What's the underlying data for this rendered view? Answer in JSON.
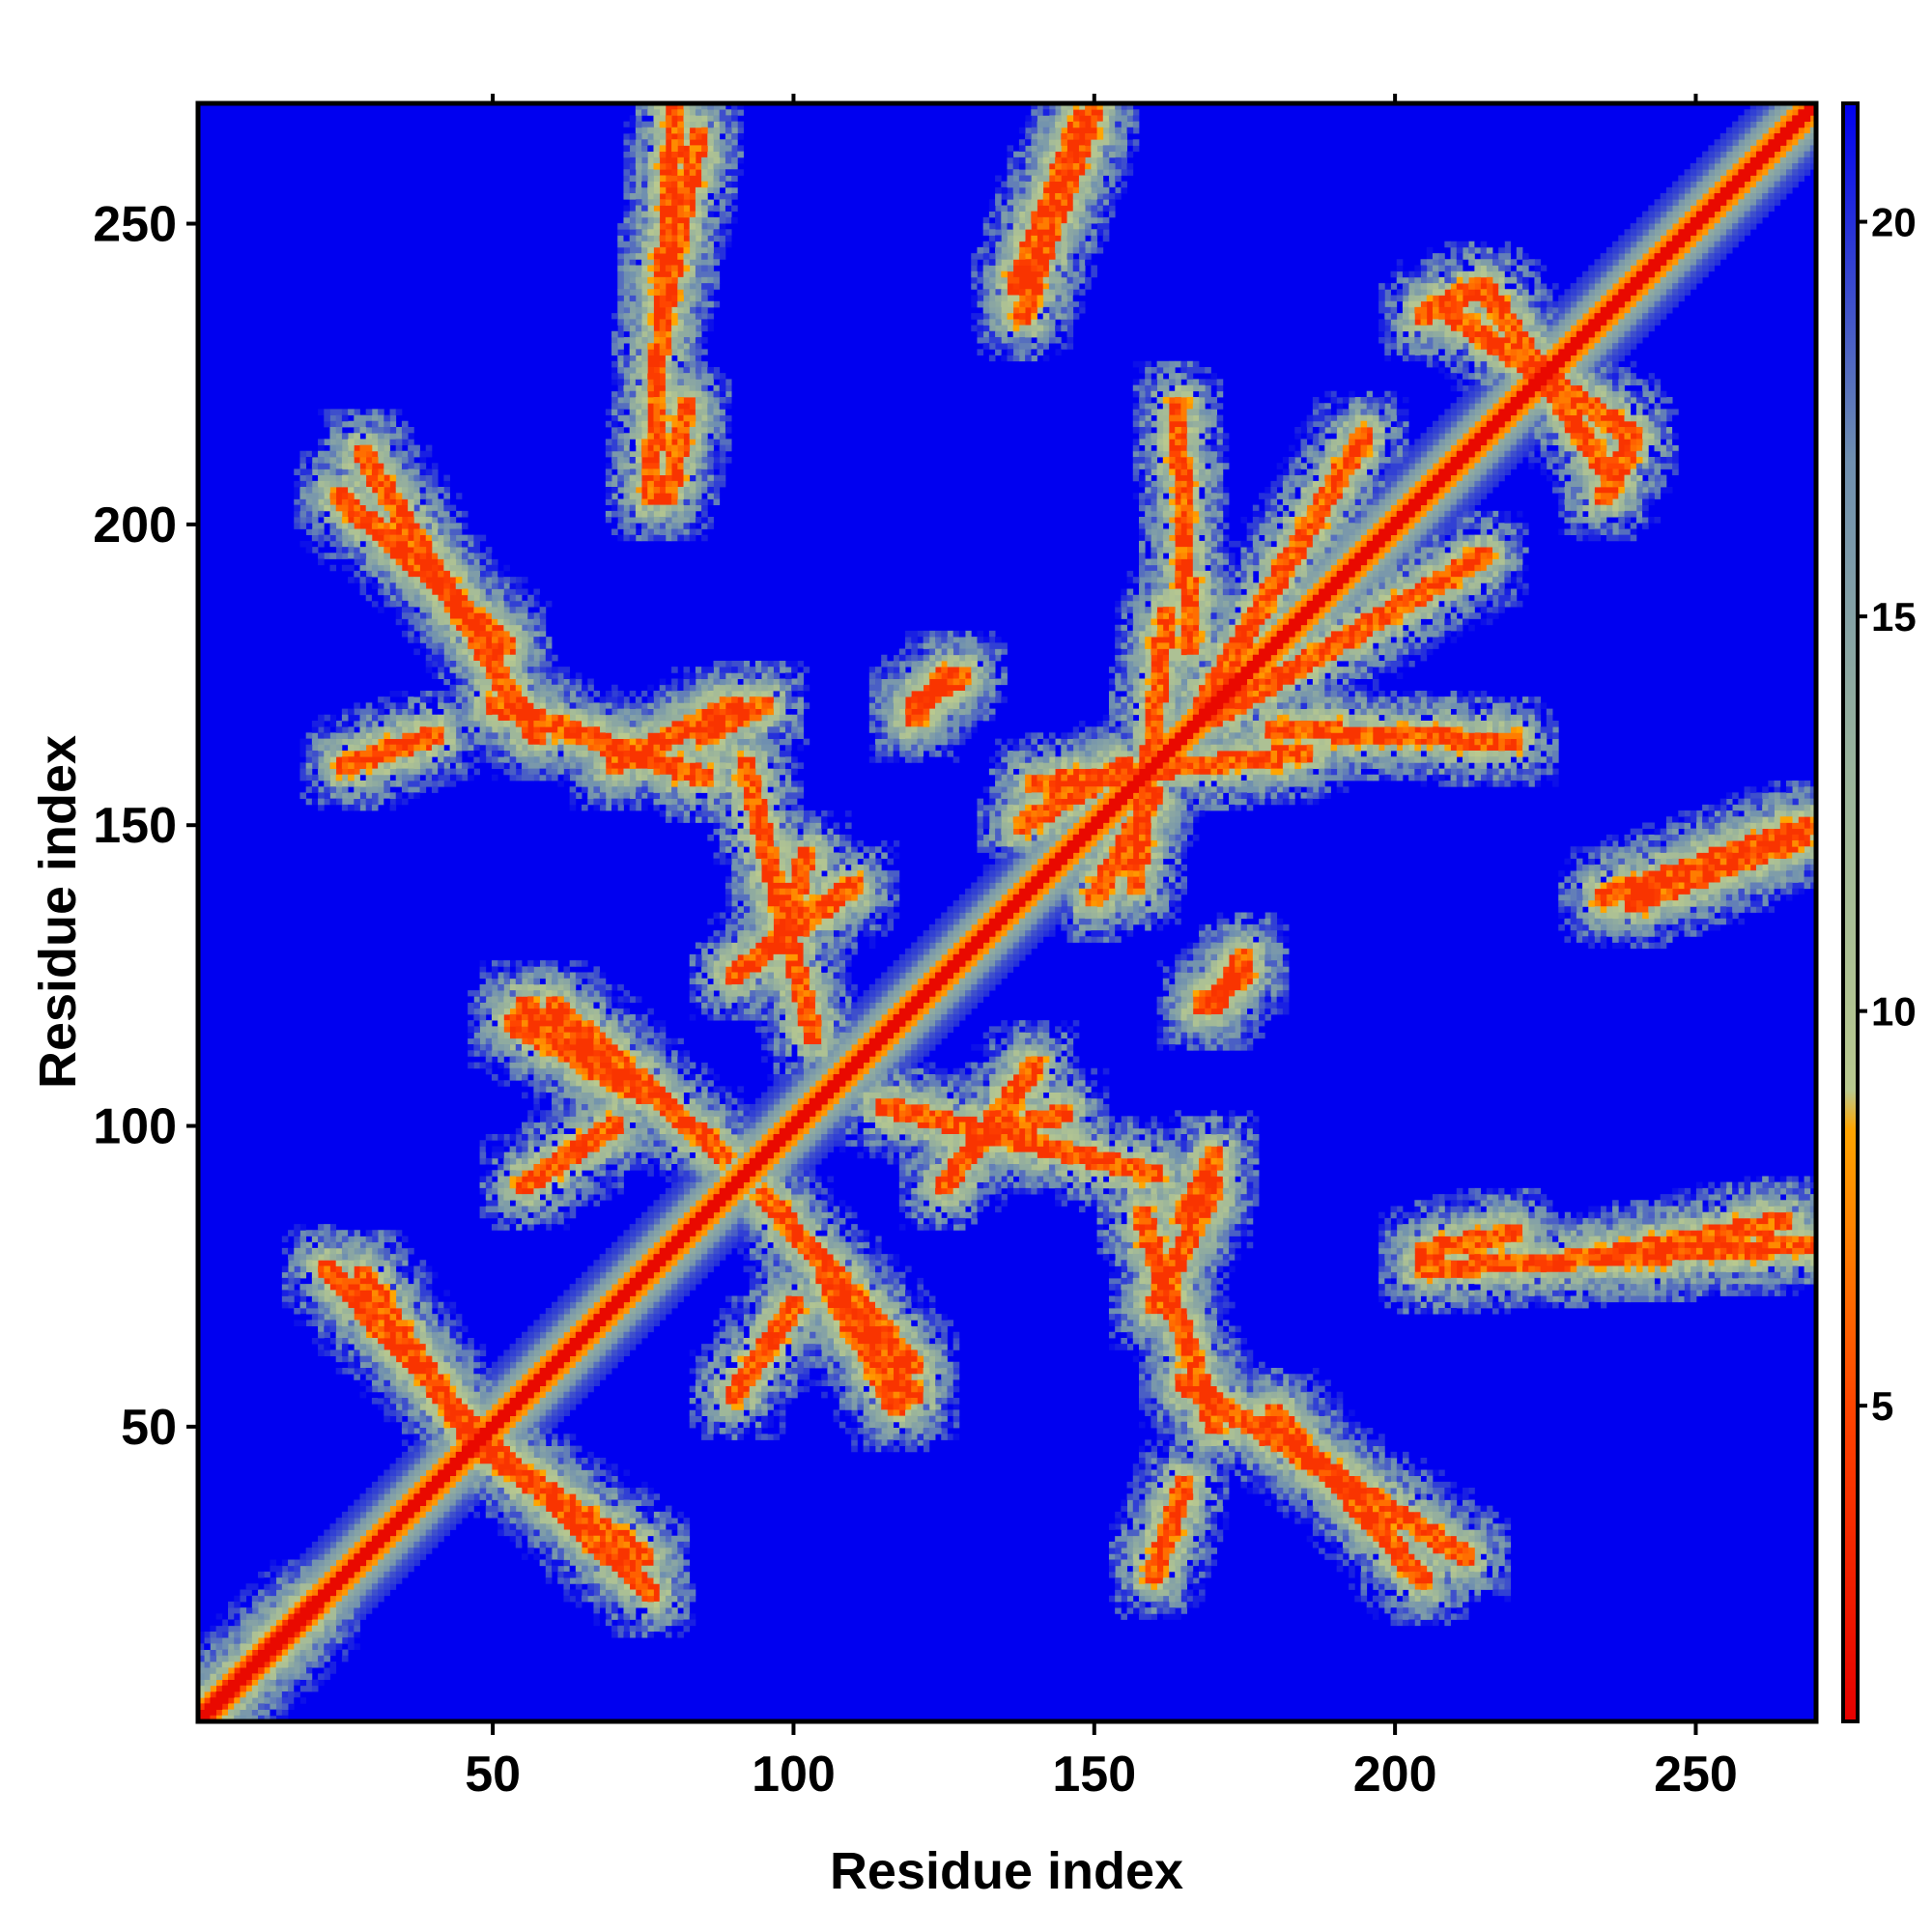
{
  "chart_data": {
    "type": "heatmap",
    "title": "",
    "xlabel": "Residue index",
    "ylabel": "Residue index",
    "xlim": [
      1,
      270
    ],
    "ylim": [
      1,
      270
    ],
    "x_ticks": [
      50,
      100,
      150,
      200,
      250
    ],
    "y_ticks": [
      50,
      100,
      150,
      200,
      250
    ],
    "x_tick_labels": [
      "50",
      "100",
      "150",
      "200",
      "250"
    ],
    "y_tick_labels": [
      "50",
      "100",
      "150",
      "200",
      "250"
    ],
    "value_range": [
      1,
      21.5
    ],
    "colorbar": {
      "ticks": [
        5,
        10,
        15,
        20
      ],
      "labels": [
        "5",
        "10",
        "15",
        "20"
      ],
      "range": [
        1,
        21.5
      ],
      "placement": "right"
    },
    "colormap": [
      {
        "value": 1,
        "color": "#e60000"
      },
      {
        "value": 5,
        "color": "#ff4500"
      },
      {
        "value": 8.5,
        "color": "#ffa500"
      },
      {
        "value": 9,
        "color": "#b9c98f"
      },
      {
        "value": 13,
        "color": "#9ab49b"
      },
      {
        "value": 17,
        "color": "#6f8fb0"
      },
      {
        "value": 21.5,
        "color": "#0000f0"
      }
    ],
    "background_color": "#0000f0",
    "grid": false,
    "diagonal": {
      "from": 1,
      "to": 270,
      "value": 2
    },
    "contact_segments": [
      {
        "x": [
          2,
          20
        ],
        "y": [
          2,
          20
        ]
      },
      {
        "x": [
          48,
          75
        ],
        "y": [
          46,
          28
        ]
      },
      {
        "x": [
          22,
          46
        ],
        "y": [
          76,
          50
        ]
      },
      {
        "x": [
          55,
          73
        ],
        "y": [
          120,
          106
        ]
      },
      {
        "x": [
          50,
          85
        ],
        "y": [
          170,
          158
        ]
      },
      {
        "x": [
          24,
          52
        ],
        "y": [
          205,
          180
        ]
      },
      {
        "x": [
          79,
          82
        ],
        "y": [
          205,
          220
        ]
      },
      {
        "x": [
          78,
          84
        ],
        "y": [
          235,
          265
        ]
      },
      {
        "x": [
          95,
          120
        ],
        "y": [
          88,
          60
        ]
      },
      {
        "x": [
          105,
          117
        ],
        "y": [
          75,
          53
        ]
      },
      {
        "x": [
          98,
          102
        ],
        "y": [
          130,
          145
        ]
      },
      {
        "x": [
          115,
          160
        ],
        "y": [
          103,
          92
        ]
      },
      {
        "x": [
          160,
          170
        ],
        "y": [
          70,
          90
        ]
      },
      {
        "x": [
          165,
          212
        ],
        "y": [
          57,
          28
        ]
      },
      {
        "x": [
          205,
          270
        ],
        "y": [
          76,
          80
        ]
      },
      {
        "x": [
          180,
          220
        ],
        "y": [
          166,
          164
        ]
      },
      {
        "x": [
          235,
          270
        ],
        "y": [
          138,
          150
        ]
      },
      {
        "x": [
          168,
          195
        ],
        "y": [
          170,
          215
        ]
      },
      {
        "x": [
          210,
          240
        ],
        "y": [
          235,
          215
        ]
      },
      {
        "x": [
          235,
          240
        ],
        "y": [
          205,
          215
        ]
      },
      {
        "x": [
          137,
          148
        ],
        "y": [
          240,
          268
        ]
      },
      {
        "x": [
          157,
          162
        ],
        "y": [
          140,
          185
        ]
      },
      {
        "x": [
          138,
          155
        ],
        "y": [
          150,
          160
        ]
      },
      {
        "x": [
          120,
          128
        ],
        "y": [
          170,
          175
        ]
      },
      {
        "x": [
          168,
          175
        ],
        "y": [
          120,
          125
        ]
      },
      {
        "x": [
          85,
          95
        ],
        "y": [
          165,
          170
        ]
      },
      {
        "x": [
          90,
          110
        ],
        "y": [
          125,
          140
        ]
      },
      {
        "x": [
          25,
          40
        ],
        "y": [
          160,
          165
        ]
      },
      {
        "x": [
          55,
          70
        ],
        "y": [
          90,
          100
        ]
      }
    ]
  }
}
